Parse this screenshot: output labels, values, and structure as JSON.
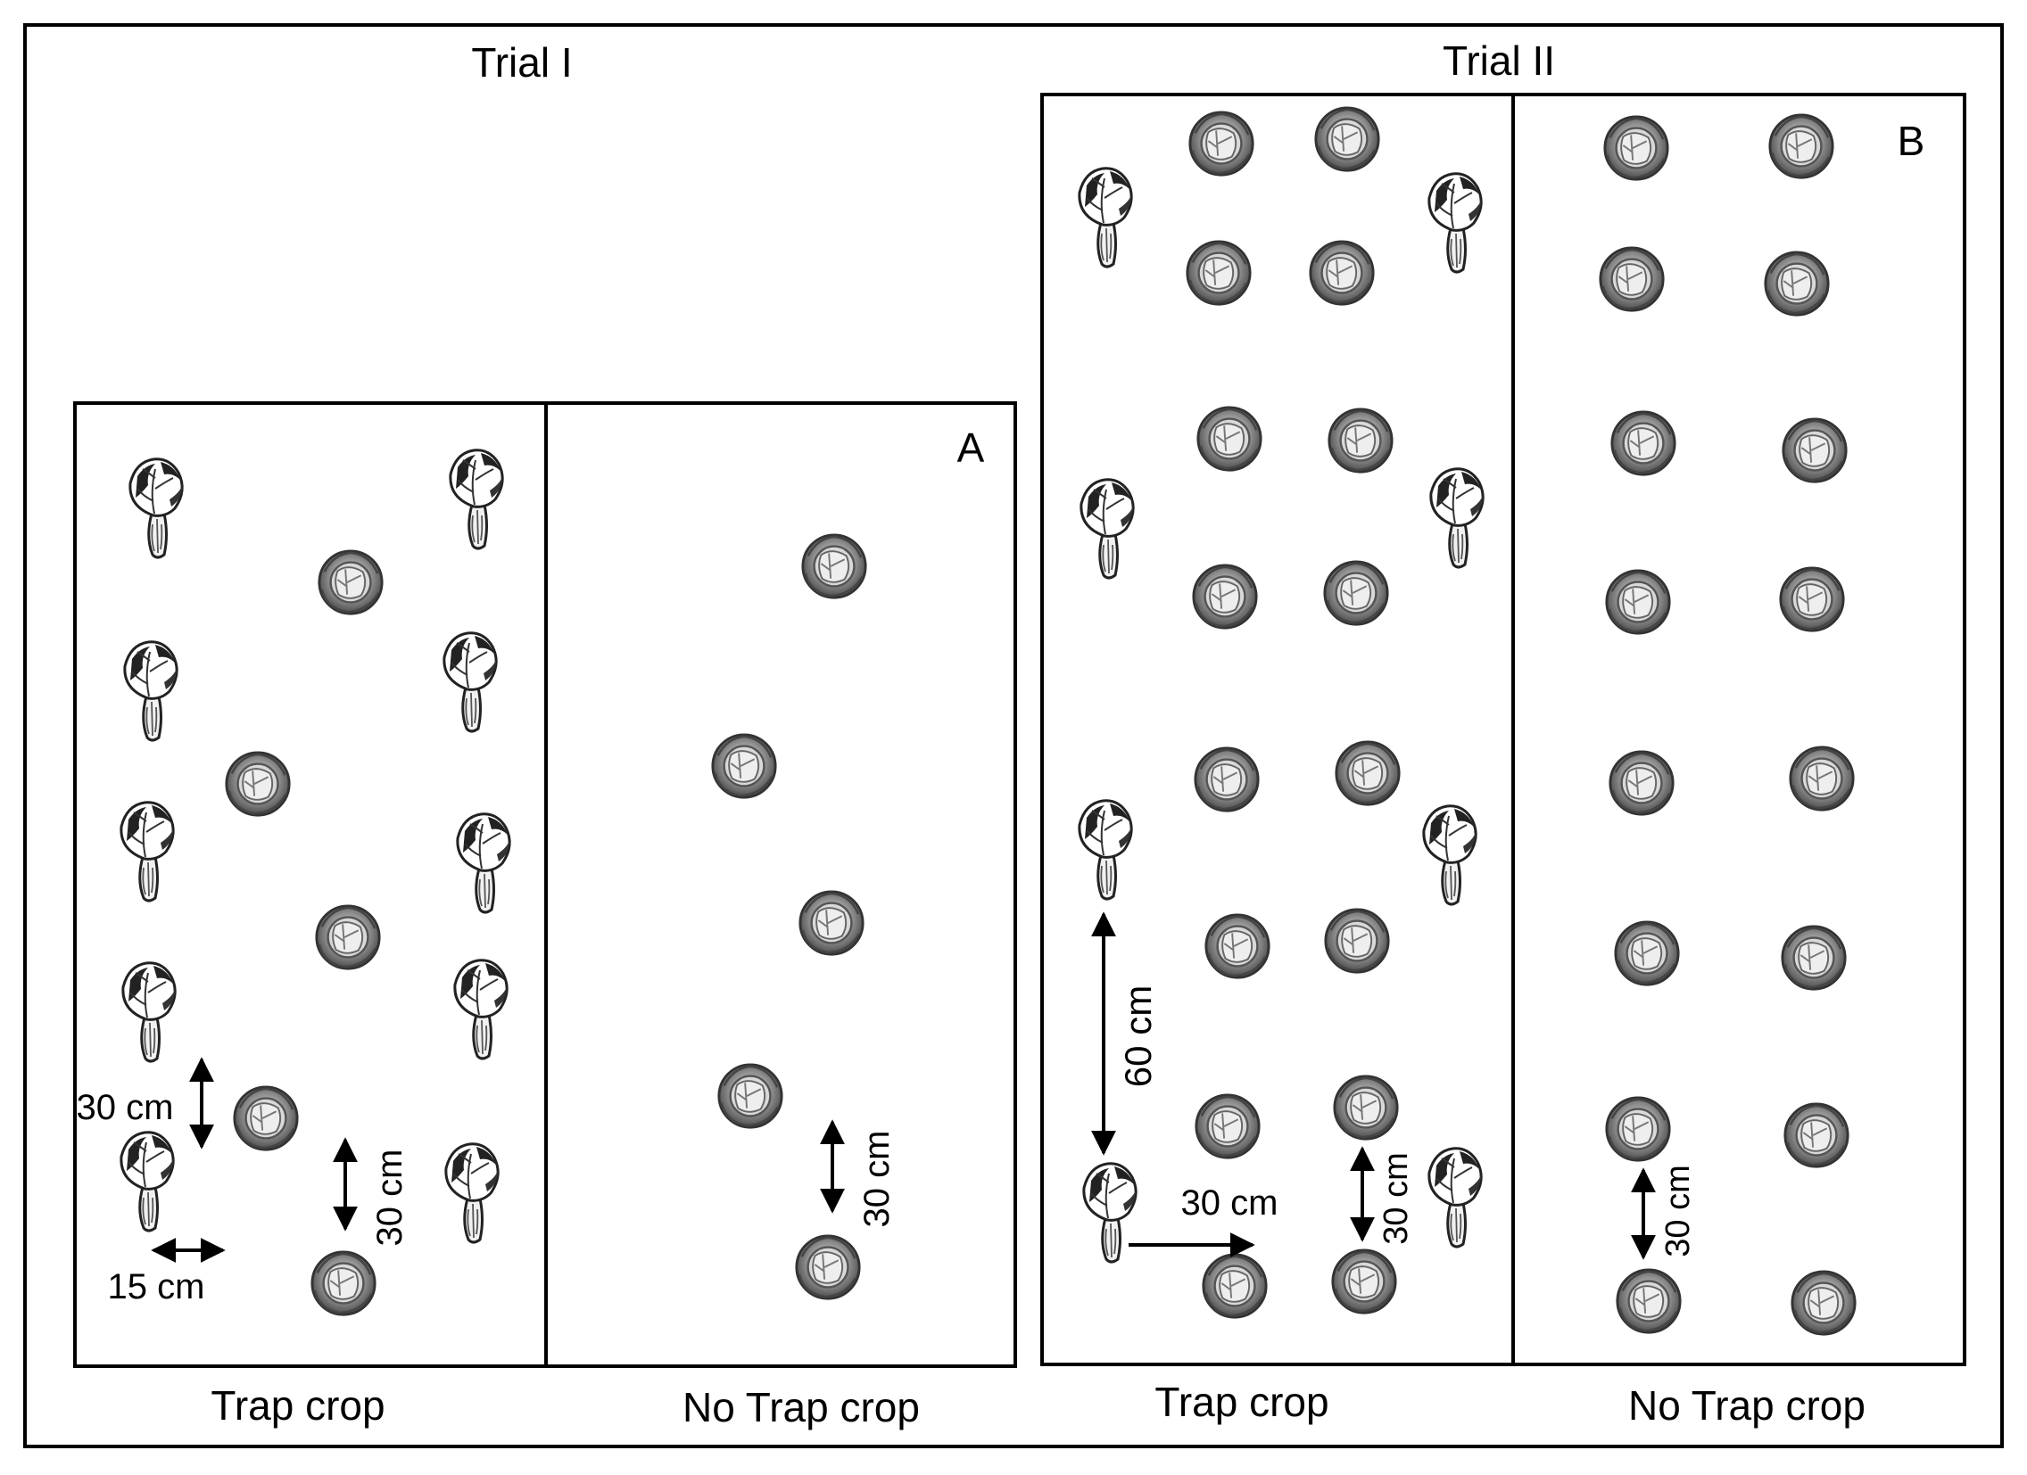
{
  "trial_1": {
    "title": "Trial I",
    "panel_letter": "A",
    "trap_crop_label": "Trap crop",
    "no_trap_crop_label": "No Trap crop",
    "trap_row_spacing": "30 cm",
    "trap_cabbage_spacing": "30 cm",
    "trap_column_spacing": "15 cm",
    "no_trap_spacing": "30 cm"
  },
  "trial_2": {
    "title": "Trial II",
    "panel_letter": "B",
    "trap_crop_label": "Trap crop",
    "no_trap_crop_label": "No Trap crop",
    "trap_plant_spacing": "60 cm",
    "trap_horizontal_spacing": "30 cm",
    "trap_cabbage_spacing": "30 cm",
    "no_trap_spacing": "30 cm"
  },
  "legend_icons": {
    "trap_plant": "bok-choy-icon",
    "main_crop": "cabbage-icon"
  }
}
